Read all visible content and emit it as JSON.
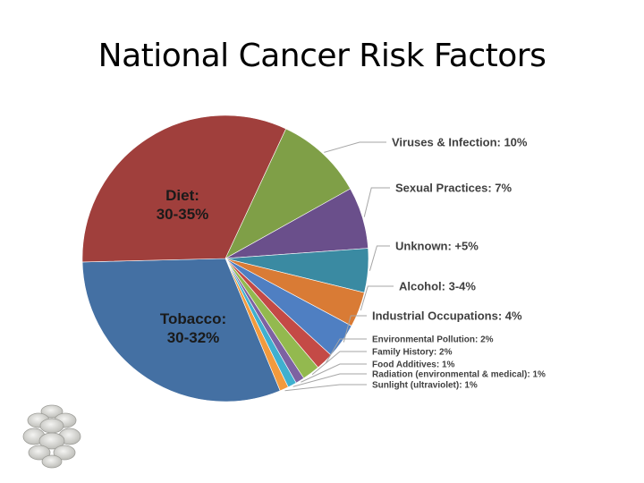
{
  "slide": {
    "title": "National Cancer Risk Factors"
  },
  "chart_data": {
    "type": "pie",
    "title": "",
    "slices": [
      {
        "label": "Viruses & Infection: 10%",
        "value": 10,
        "color": "#7f9f47"
      },
      {
        "label": "Sexual Practices: 7%",
        "value": 7,
        "color": "#6a4f8b"
      },
      {
        "label": "Unknown: +5%",
        "value": 5,
        "color": "#3a8aa2"
      },
      {
        "label": "Alcohol: 3-4%",
        "value": 4,
        "color": "#d97b35"
      },
      {
        "label": "Industrial Occupations: 4%",
        "value": 4,
        "color": "#4f7fc2"
      },
      {
        "label": "Environmental Pollution: 2%",
        "value": 2,
        "color": "#c44a46"
      },
      {
        "label": "Family History: 2%",
        "value": 2,
        "color": "#93b94f"
      },
      {
        "label": "Food Additives: 1%",
        "value": 1,
        "color": "#7d62a2"
      },
      {
        "label": "Radiation (environmental & medical): 1%",
        "value": 1,
        "color": "#3fb0cf"
      },
      {
        "label": "Sunlight (ultraviolet): 1%",
        "value": 1,
        "color": "#f29a3d"
      },
      {
        "label": "Tobacco: 30-32%",
        "value": 31,
        "color": "#4470a3"
      },
      {
        "label": "Diet: 30-35%",
        "value": 32.5,
        "color": "#a03f3c"
      }
    ],
    "inner_labels": [
      {
        "lines": [
          "Diet:",
          "30-35%"
        ]
      },
      {
        "lines": [
          "Tobacco:",
          "30-32%"
        ]
      }
    ],
    "legend": "none"
  }
}
